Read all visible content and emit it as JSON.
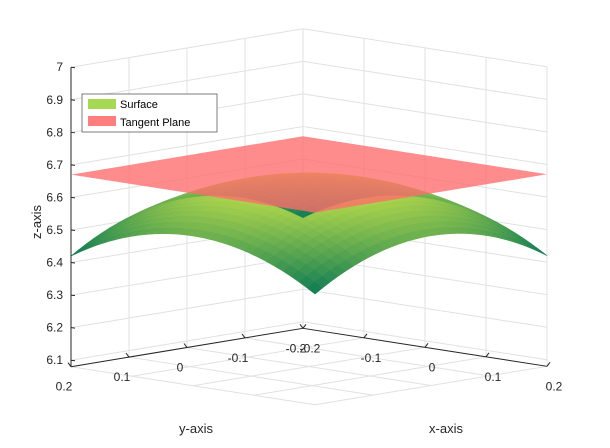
{
  "chart_data": {
    "type": "surface3d",
    "title": "",
    "xlabel": "x-axis",
    "ylabel": "y-axis",
    "zlabel": "z-axis",
    "xlim": [
      -0.2,
      0.2
    ],
    "ylim": [
      -0.2,
      0.2
    ],
    "zlim": [
      6.08,
      7.0
    ],
    "x_ticks": [
      -0.2,
      -0.1,
      0,
      0.1,
      0.2
    ],
    "x_tick_labels": [
      "-0.2",
      "-0.1",
      "0",
      "0.1",
      "0.2"
    ],
    "y_ticks": [
      -0.2,
      -0.1,
      0,
      0.1,
      0.2
    ],
    "y_tick_labels": [
      "-0.2",
      "-0.1",
      "0",
      "0.1",
      "0.2"
    ],
    "z_ticks": [
      6.1,
      6.2,
      6.3,
      6.4,
      6.5,
      6.6,
      6.7,
      6.8,
      6.9,
      7.0
    ],
    "z_tick_labels": [
      "6.1",
      "6.2",
      "6.3",
      "6.4",
      "6.5",
      "6.6",
      "6.7",
      "6.8",
      "6.9",
      "7"
    ],
    "grid": true,
    "legend_position": "top-left",
    "colors": {
      "surface_high": "#c8e34a",
      "surface_low": "#0b7a55",
      "plane": "#ff6b6b",
      "legend_surface": "#a6d854",
      "legend_plane": "#ff7f7f"
    },
    "series": [
      {
        "name": "Surface",
        "kind": "surface",
        "x_range": [
          -0.2,
          0.2
        ],
        "y_range": [
          -0.2,
          0.2
        ],
        "z_at_center": 6.66,
        "z_at_corners": [
          6.42,
          6.43,
          6.42,
          6.43
        ],
        "z_at_edge_midpoints": [
          6.54,
          6.54,
          6.54,
          6.54
        ]
      },
      {
        "name": "Tangent Plane",
        "kind": "plane",
        "x_range": [
          -0.2,
          0.2
        ],
        "y_range": [
          -0.2,
          0.2
        ],
        "z": 6.67
      }
    ]
  }
}
